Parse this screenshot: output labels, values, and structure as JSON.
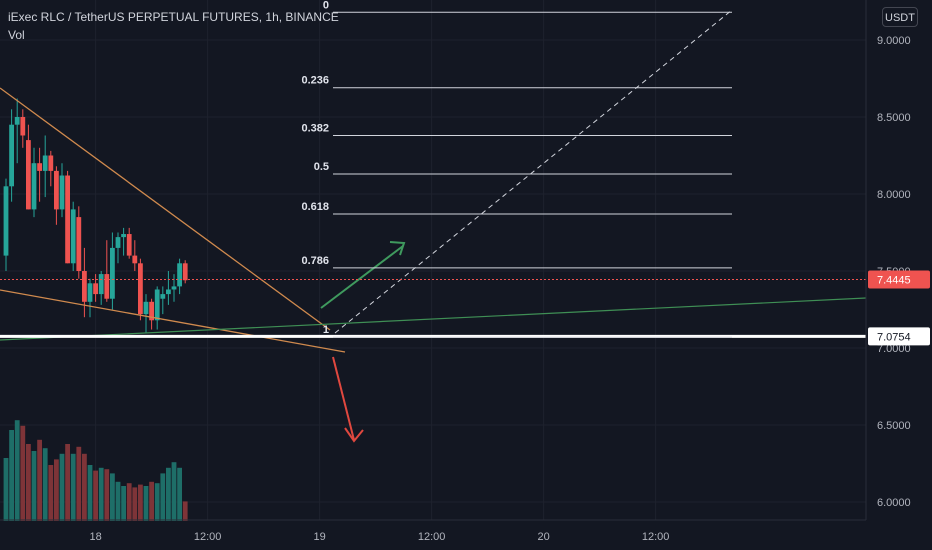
{
  "header": {
    "symbol_line": "iExec RLC / TetherUS PERPETUAL FUTURES, 1h, BINANCE",
    "vol_label": "Vol"
  },
  "currency_button": "USDT",
  "colors": {
    "background": "#131722",
    "up": "#26a69a",
    "down": "#ef5350",
    "vol_up": "#1e6e68",
    "vol_down": "#7e3438",
    "wedge": "#d08a4e",
    "support": "#3f8f55",
    "green_arrow": "#3f9a5e",
    "red_arrow": "#e0483f",
    "fib": "#d1d4dc"
  },
  "chart_data": {
    "type": "candlestick",
    "y_axis_ticks": [
      "9.0000",
      "8.5000",
      "8.0000",
      "7.5000",
      "7.0000",
      "6.5000",
      "6.0000"
    ],
    "y_axis_values": [
      9.0,
      8.5,
      8.0,
      7.5,
      7.0,
      6.5,
      6.0
    ],
    "x_axis_ticks": [
      {
        "label": "18",
        "slot": 16
      },
      {
        "label": "12:00",
        "slot": 36
      },
      {
        "label": "19",
        "slot": 56
      },
      {
        "label": "12:00",
        "slot": 76
      },
      {
        "label": "20",
        "slot": 96
      },
      {
        "label": "12:00",
        "slot": 116
      }
    ],
    "candles": [
      {
        "o": 7.6,
        "h": 8.1,
        "l": 7.5,
        "c": 8.05,
        "v": 0.45
      },
      {
        "o": 8.05,
        "h": 8.55,
        "l": 7.95,
        "c": 8.45,
        "v": 0.65
      },
      {
        "o": 8.45,
        "h": 8.62,
        "l": 8.2,
        "c": 8.5,
        "v": 0.72
      },
      {
        "o": 8.5,
        "h": 8.55,
        "l": 8.3,
        "c": 8.38,
        "v": 0.68
      },
      {
        "o": 8.35,
        "h": 8.45,
        "l": 7.9,
        "c": 7.9,
        "v": 0.55
      },
      {
        "o": 7.9,
        "h": 8.3,
        "l": 7.85,
        "c": 8.2,
        "v": 0.5
      },
      {
        "o": 8.2,
        "h": 8.3,
        "l": 7.95,
        "c": 8.15,
        "v": 0.58
      },
      {
        "o": 8.15,
        "h": 8.38,
        "l": 7.98,
        "c": 8.25,
        "v": 0.52
      },
      {
        "o": 8.25,
        "h": 8.28,
        "l": 8.05,
        "c": 8.15,
        "v": 0.4
      },
      {
        "o": 8.15,
        "h": 8.18,
        "l": 7.8,
        "c": 7.9,
        "v": 0.44
      },
      {
        "o": 7.9,
        "h": 8.2,
        "l": 7.85,
        "c": 8.12,
        "v": 0.48
      },
      {
        "o": 8.12,
        "h": 8.15,
        "l": 7.55,
        "c": 7.55,
        "v": 0.55
      },
      {
        "o": 7.55,
        "h": 7.95,
        "l": 7.5,
        "c": 7.9,
        "v": 0.48
      },
      {
        "o": 7.85,
        "h": 7.92,
        "l": 7.45,
        "c": 7.5,
        "v": 0.53
      },
      {
        "o": 7.5,
        "h": 7.65,
        "l": 7.2,
        "c": 7.3,
        "v": 0.48
      },
      {
        "o": 7.3,
        "h": 7.45,
        "l": 7.2,
        "c": 7.42,
        "v": 0.4
      },
      {
        "o": 7.42,
        "h": 7.48,
        "l": 7.3,
        "c": 7.35,
        "v": 0.36
      },
      {
        "o": 7.35,
        "h": 7.5,
        "l": 7.28,
        "c": 7.48,
        "v": 0.38
      },
      {
        "o": 7.48,
        "h": 7.7,
        "l": 7.3,
        "c": 7.32,
        "v": 0.37
      },
      {
        "o": 7.32,
        "h": 7.75,
        "l": 7.25,
        "c": 7.65,
        "v": 0.34
      },
      {
        "o": 7.65,
        "h": 7.75,
        "l": 7.55,
        "c": 7.72,
        "v": 0.28
      },
      {
        "o": 7.72,
        "h": 7.78,
        "l": 7.6,
        "c": 7.74,
        "v": 0.25
      },
      {
        "o": 7.74,
        "h": 7.78,
        "l": 7.58,
        "c": 7.6,
        "v": 0.27
      },
      {
        "o": 7.6,
        "h": 7.7,
        "l": 7.5,
        "c": 7.55,
        "v": 0.24
      },
      {
        "o": 7.55,
        "h": 7.58,
        "l": 7.18,
        "c": 7.22,
        "v": 0.26
      },
      {
        "o": 7.22,
        "h": 7.35,
        "l": 7.1,
        "c": 7.3,
        "v": 0.25
      },
      {
        "o": 7.3,
        "h": 7.32,
        "l": 7.12,
        "c": 7.18,
        "v": 0.28
      },
      {
        "o": 7.18,
        "h": 7.4,
        "l": 7.12,
        "c": 7.38,
        "v": 0.27
      },
      {
        "o": 7.32,
        "h": 7.4,
        "l": 7.22,
        "c": 7.35,
        "v": 0.34
      },
      {
        "o": 7.35,
        "h": 7.5,
        "l": 7.28,
        "c": 7.38,
        "v": 0.38
      },
      {
        "o": 7.38,
        "h": 7.48,
        "l": 7.3,
        "c": 7.4,
        "v": 0.42
      },
      {
        "o": 7.4,
        "h": 7.58,
        "l": 7.35,
        "c": 7.55,
        "v": 0.38
      },
      {
        "o": 7.55,
        "h": 7.57,
        "l": 7.42,
        "c": 7.44,
        "v": 0.14
      }
    ],
    "fibonacci": [
      {
        "label": "0",
        "value": 9.18
      },
      {
        "label": "0.236",
        "value": 8.69
      },
      {
        "label": "0.382",
        "value": 8.38
      },
      {
        "label": "0.5",
        "value": 8.13
      },
      {
        "label": "0.618",
        "value": 7.87
      },
      {
        "label": "0.786",
        "value": 7.52
      },
      {
        "label": "1",
        "value": 7.07
      }
    ],
    "price_lines": [
      {
        "label": "7.4445",
        "value": 7.4445,
        "style": "last"
      },
      {
        "label": "7.0754",
        "value": 7.0754,
        "style": "level"
      }
    ]
  }
}
